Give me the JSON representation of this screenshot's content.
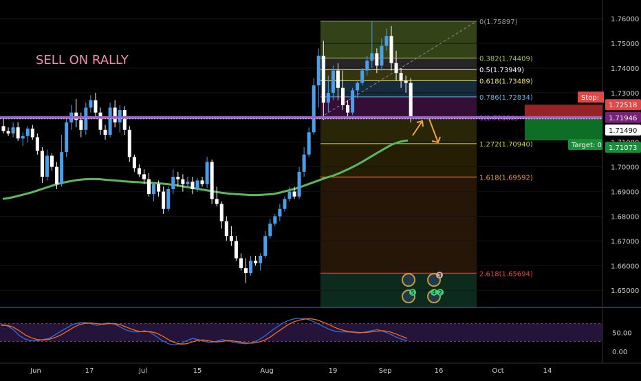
{
  "annotation": "SELL ON RALLY",
  "colors": {
    "background": "#000000",
    "up_candle": "#4c9ee8",
    "down_candle": "#ffffff",
    "moving_average": "#5cb85c",
    "pivot_line": "#9b5fd0",
    "annotation_text": "#f08cb0",
    "stoch_k": "#2f6fe0",
    "stoch_d": "#ff6a1a",
    "stop_badge": "#e04848",
    "target_badge": "#1a8c3a",
    "price_badge": "#ffffff",
    "arrow": "#f7a340"
  },
  "chart_data": [
    {
      "type": "candlestick",
      "xlabels": [
        "Jun",
        "17",
        "Jul",
        "15",
        "Aug",
        "19",
        "Sep",
        "16",
        "Oct",
        "14"
      ],
      "ylim": [
        1.647,
        1.762
      ],
      "yticks": [
        "1.76000",
        "1.75000",
        "1.74000",
        "1.73000",
        "1.72000",
        "1.71000",
        "1.70000",
        "1.69000",
        "1.68000",
        "1.67000",
        "1.66000",
        "1.65000"
      ],
      "candles": [
        [
          1.7165,
          1.72,
          1.7135,
          1.7145
        ],
        [
          1.7145,
          1.716,
          1.7125,
          1.7135
        ],
        [
          1.7135,
          1.718,
          1.712,
          1.716
        ],
        [
          1.716,
          1.718,
          1.7105,
          1.7115
        ],
        [
          1.7115,
          1.714,
          1.7085,
          1.7125
        ],
        [
          1.7125,
          1.7165,
          1.71,
          1.7155
        ],
        [
          1.7155,
          1.717,
          1.711,
          1.712
        ],
        [
          1.712,
          1.7135,
          1.705,
          1.7065
        ],
        [
          1.7065,
          1.708,
          1.6935,
          1.696
        ],
        [
          1.696,
          1.707,
          1.6945,
          1.7045
        ],
        [
          1.7045,
          1.7055,
          1.6985,
          1.7
        ],
        [
          1.7,
          1.702,
          1.691,
          1.693
        ],
        [
          1.693,
          1.713,
          1.692,
          1.706
        ],
        [
          1.706,
          1.72,
          1.704,
          1.718
        ],
        [
          1.718,
          1.725,
          1.715,
          1.722
        ],
        [
          1.722,
          1.7275,
          1.716,
          1.719
        ],
        [
          1.719,
          1.722,
          1.712,
          1.715
        ],
        [
          1.715,
          1.726,
          1.713,
          1.724
        ],
        [
          1.724,
          1.729,
          1.722,
          1.727
        ],
        [
          1.727,
          1.73,
          1.72,
          1.722
        ],
        [
          1.722,
          1.724,
          1.713,
          1.715
        ],
        [
          1.715,
          1.717,
          1.711,
          1.713
        ],
        [
          1.713,
          1.726,
          1.712,
          1.724
        ],
        [
          1.724,
          1.727,
          1.716,
          1.718
        ],
        [
          1.718,
          1.725,
          1.714,
          1.723
        ],
        [
          1.723,
          1.7245,
          1.713,
          1.715
        ],
        [
          1.715,
          1.7165,
          1.702,
          1.704
        ],
        [
          1.704,
          1.705,
          1.698,
          1.6995
        ],
        [
          1.6995,
          1.701,
          1.696,
          1.697
        ],
        [
          1.697,
          1.699,
          1.693,
          1.695
        ],
        [
          1.695,
          1.6975,
          1.688,
          1.689
        ],
        [
          1.689,
          1.6935,
          1.686,
          1.693
        ],
        [
          1.693,
          1.6945,
          1.688,
          1.69
        ],
        [
          1.69,
          1.692,
          1.681,
          1.683
        ],
        [
          1.683,
          1.692,
          1.682,
          1.691
        ],
        [
          1.691,
          1.699,
          1.689,
          1.696
        ],
        [
          1.696,
          1.698,
          1.692,
          1.695
        ],
        [
          1.695,
          1.697,
          1.69,
          1.693
        ],
        [
          1.693,
          1.696,
          1.692,
          1.694
        ],
        [
          1.694,
          1.696,
          1.689,
          1.691
        ],
        [
          1.691,
          1.6955,
          1.69,
          1.6945
        ],
        [
          1.6945,
          1.696,
          1.692,
          1.693
        ],
        [
          1.693,
          1.704,
          1.6915,
          1.702
        ],
        [
          1.702,
          1.703,
          1.685,
          1.687
        ],
        [
          1.687,
          1.692,
          1.684,
          1.685
        ],
        [
          1.685,
          1.686,
          1.675,
          1.678
        ],
        [
          1.678,
          1.68,
          1.67,
          1.672
        ],
        [
          1.672,
          1.676,
          1.668,
          1.67
        ],
        [
          1.67,
          1.672,
          1.662,
          1.663
        ],
        [
          1.663,
          1.665,
          1.658,
          1.659
        ],
        [
          1.659,
          1.663,
          1.653,
          1.657
        ],
        [
          1.657,
          1.664,
          1.656,
          1.662
        ],
        [
          1.662,
          1.664,
          1.66,
          1.661
        ],
        [
          1.661,
          1.665,
          1.658,
          1.664
        ],
        [
          1.664,
          1.674,
          1.663,
          1.672
        ],
        [
          1.672,
          1.679,
          1.671,
          1.677
        ],
        [
          1.677,
          1.681,
          1.676,
          1.68
        ],
        [
          1.68,
          1.685,
          1.678,
          1.683
        ],
        [
          1.683,
          1.688,
          1.682,
          1.687
        ],
        [
          1.687,
          1.692,
          1.686,
          1.69
        ],
        [
          1.69,
          1.692,
          1.687,
          1.688
        ],
        [
          1.688,
          1.7,
          1.687,
          1.698
        ],
        [
          1.698,
          1.708,
          1.696,
          1.705
        ],
        [
          1.705,
          1.716,
          1.704,
          1.714
        ],
        [
          1.714,
          1.736,
          1.713,
          1.733
        ],
        [
          1.733,
          1.748,
          1.724,
          1.745
        ],
        [
          1.745,
          1.751,
          1.719,
          1.726
        ],
        [
          1.726,
          1.737,
          1.722,
          1.73
        ],
        [
          1.73,
          1.741,
          1.727,
          1.739
        ],
        [
          1.739,
          1.742,
          1.727,
          1.732
        ],
        [
          1.732,
          1.739,
          1.723,
          1.725
        ],
        [
          1.725,
          1.727,
          1.72,
          1.722
        ],
        [
          1.722,
          1.732,
          1.721,
          1.731
        ],
        [
          1.731,
          1.735,
          1.728,
          1.734
        ],
        [
          1.734,
          1.74,
          1.733,
          1.739
        ],
        [
          1.739,
          1.745,
          1.737,
          1.743
        ],
        [
          1.743,
          1.759,
          1.74,
          1.746
        ],
        [
          1.746,
          1.748,
          1.738,
          1.741
        ],
        [
          1.741,
          1.752,
          1.739,
          1.749
        ],
        [
          1.749,
          1.756,
          1.747,
          1.753
        ],
        [
          1.753,
          1.757,
          1.739,
          1.742
        ],
        [
          1.742,
          1.747,
          1.735,
          1.738
        ],
        [
          1.738,
          1.74,
          1.732,
          1.735
        ],
        [
          1.735,
          1.737,
          1.73,
          1.734
        ],
        [
          1.734,
          1.736,
          1.718,
          1.72
        ]
      ],
      "moving_average": [
        1.687,
        1.6875,
        1.6882,
        1.689,
        1.6898,
        1.6908,
        1.6918,
        1.6928,
        1.6936,
        1.6942,
        1.6947,
        1.695,
        1.6951,
        1.695,
        1.6947,
        1.6945,
        1.6942,
        1.694,
        1.6938,
        1.6936,
        1.6935,
        1.6933,
        1.693,
        1.6926,
        1.6921,
        1.6916,
        1.6911,
        1.6906,
        1.6901,
        1.6896,
        1.6892,
        1.689,
        1.6888,
        1.6886,
        1.6886,
        1.6888,
        1.689,
        1.6896,
        1.6904,
        1.6912,
        1.6922,
        1.6933,
        1.6944,
        1.6955,
        1.6964,
        1.6976,
        1.699,
        1.7005,
        1.7022,
        1.704,
        1.7058,
        1.7076,
        1.7092,
        1.7102,
        1.7107
      ],
      "fibonacci": {
        "levels": [
          {
            "label": "0(1.75897)",
            "color": "#9e9e9e"
          },
          {
            "label": "0.382(1.74409)",
            "color": "#a5c95c"
          },
          {
            "label": "0.5(1.73949)",
            "color": "#ffffff"
          },
          {
            "label": "0.618(1.73489)",
            "color": "#f2e36a"
          },
          {
            "label": "0.786(1.72834)",
            "color": "#5db4e6"
          },
          {
            "label": "1(1.72000)",
            "color": "#a64ad6"
          },
          {
            "label": "1.272(1.70940)",
            "color": "#d9d13e"
          },
          {
            "label": "1.618(1.69592)",
            "color": "#f59b2a"
          },
          {
            "label": "2.618(1.65694)",
            "color": "#e9443c"
          }
        ],
        "values": [
          1.75897,
          1.74409,
          1.73949,
          1.73489,
          1.72834,
          1.72,
          1.7094,
          1.69592,
          1.65694
        ]
      },
      "pivot_level": 1.72,
      "last_price": 1.71946,
      "price_labels": {
        "stop_label": "Stop:",
        "stop_value": "1.72518",
        "current": "1.71946",
        "current2": "1.71946",
        "cursor": "1.71490",
        "target_value": "1.71073",
        "target_label": "Target: 0"
      },
      "trade_box": {
        "stop": 1.72518,
        "entry": 1.71946,
        "target": 1.71073
      },
      "event_badges": [
        "5",
        "4",
        "2",
        "3"
      ]
    },
    {
      "type": "line",
      "title": "",
      "ylim": [
        0,
        100
      ],
      "yticks": [
        "50.00",
        "0.00"
      ],
      "bands": [
        80,
        20
      ],
      "series": [
        {
          "values": [
            78,
            72,
            60,
            40,
            28,
            22,
            22,
            26,
            30,
            42,
            55,
            66,
            78,
            82,
            84,
            80,
            74,
            80,
            82,
            78,
            68,
            58,
            52,
            52,
            56,
            50,
            36,
            22,
            12,
            8,
            12,
            22,
            30,
            26,
            20,
            16,
            20,
            26,
            22,
            16,
            14,
            12,
            16,
            24,
            36,
            52,
            66,
            80,
            90,
            96,
            98,
            96,
            90,
            80,
            70,
            60,
            54,
            52,
            52,
            50,
            48,
            52,
            56,
            60,
            54,
            46,
            36,
            28,
            22
          ]
        },
        {
          "values": [
            74,
            74,
            68,
            56,
            42,
            32,
            26,
            25,
            27,
            33,
            42,
            54,
            66,
            76,
            81,
            82,
            80,
            78,
            80,
            80,
            76,
            68,
            60,
            54,
            53,
            53,
            48,
            38,
            26,
            16,
            11,
            12,
            18,
            24,
            25,
            21,
            18,
            20,
            23,
            21,
            18,
            15,
            14,
            17,
            23,
            34,
            48,
            62,
            76,
            86,
            92,
            96,
            96,
            92,
            84,
            76,
            66,
            59,
            54,
            52,
            50,
            50,
            52,
            55,
            56,
            53,
            46,
            38,
            30
          ]
        }
      ]
    }
  ]
}
